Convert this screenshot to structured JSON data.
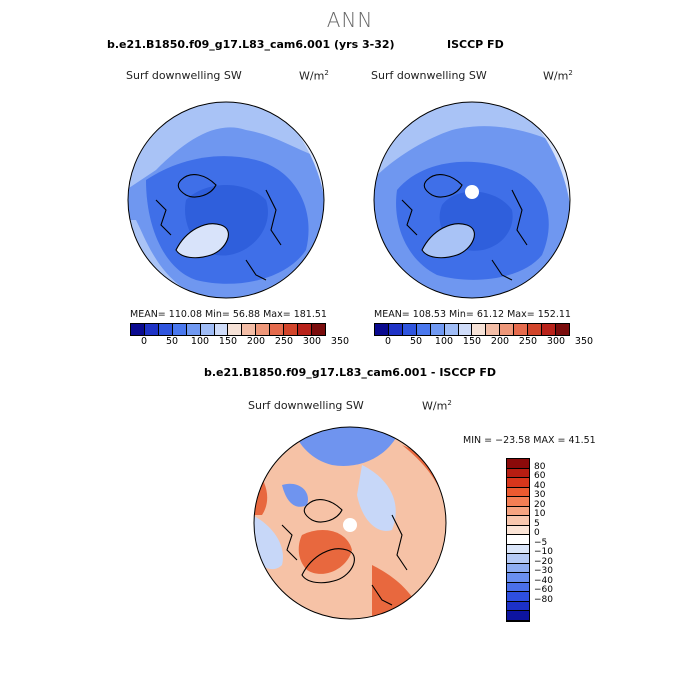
{
  "figure": {
    "title": "ANN"
  },
  "panels": [
    {
      "title": "b.e21.B1850.f09_g17.L83_cam6.001 (yrs 3-32)",
      "variable": "Surf downwelling SW",
      "units": "W/m",
      "units_exp": "2",
      "stats": "MEAN= 110.08   Min=  56.88   Max= 181.51",
      "colorbar": {
        "colors": [
          "#0a0a8f",
          "#1f33c6",
          "#2f55de",
          "#4a78ee",
          "#7099f2",
          "#9fbcf6",
          "#cfdcf9",
          "#f6e2d7",
          "#f3bda6",
          "#ee9779",
          "#e56b4d",
          "#d2452b",
          "#b8221a",
          "#7a0c0c"
        ],
        "tick_labels": [
          "0",
          "50",
          "100",
          "150",
          "200",
          "250",
          "300",
          "350"
        ]
      }
    },
    {
      "title": "ISCCP FD",
      "variable": "Surf downwelling SW",
      "units": "W/m",
      "units_exp": "2",
      "stats": "MEAN= 108.53   Min=  61.12   Max= 152.11",
      "colorbar": {
        "colors": [
          "#0a0a8f",
          "#1f33c6",
          "#2f55de",
          "#4a78ee",
          "#7099f2",
          "#9fbcf6",
          "#cfdcf9",
          "#f6e2d7",
          "#f3bda6",
          "#ee9779",
          "#e56b4d",
          "#d2452b",
          "#b8221a",
          "#7a0c0c"
        ],
        "tick_labels": [
          "0",
          "50",
          "100",
          "150",
          "200",
          "250",
          "300",
          "350"
        ]
      }
    }
  ],
  "difference": {
    "title": "b.e21.B1850.f09_g17.L83_cam6.001 - ISCCP FD",
    "variable": "Surf downwelling SW",
    "units": "W/m",
    "units_exp": "2",
    "stats": "MIN = −23.58  MAX =  41.51",
    "colorbar": {
      "colors": [
        "#8b0a0a",
        "#b61d12",
        "#d8361c",
        "#ec5a30",
        "#f47f55",
        "#f6a481",
        "#f8c7ae",
        "#fbe4d6",
        "#ffffff",
        "#dbe6fa",
        "#b5caf6",
        "#8eadf2",
        "#6a8ff0",
        "#4a6fea",
        "#2e4fe0",
        "#1c31c8",
        "#0d14a0"
      ],
      "tick_labels": [
        "80",
        "60",
        "40",
        "30",
        "20",
        "10",
        "5",
        "0",
        "−5",
        "−10",
        "−20",
        "−30",
        "−40",
        "−60",
        "−80"
      ]
    }
  },
  "map_colors": {
    "abs_dark": "#2f5fdc",
    "abs_mid": "#3f6fe8",
    "abs_light": "#6f97f0",
    "abs_pale": "#a9c3f6",
    "abs_paler": "#d8e3fa",
    "diff_red": "#e8683e",
    "diff_pink": "#f6c2a6",
    "diff_blue": "#6f94ef",
    "diff_pale_blue": "#c7d7f8"
  }
}
